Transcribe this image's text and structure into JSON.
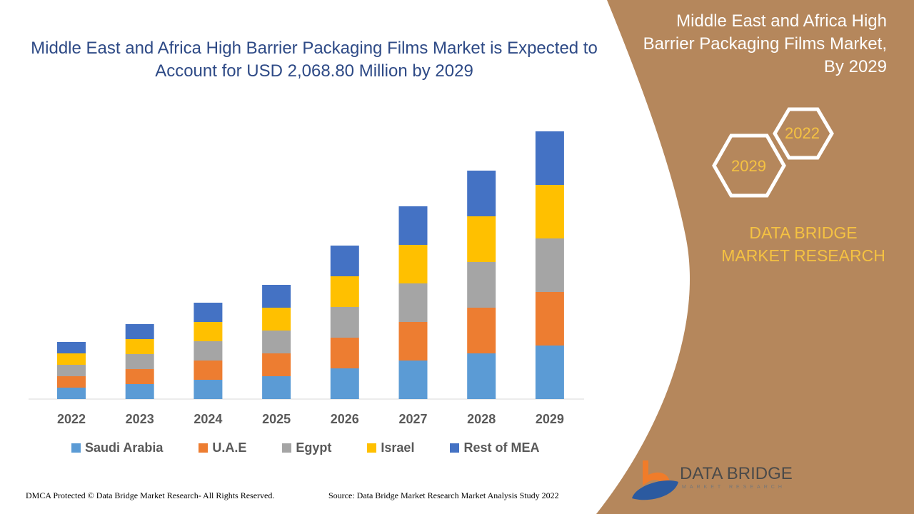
{
  "header": {
    "title": "Middle East and Africa High Barrier Packaging Films Market is Expected to Account for USD 2,068.80 Million by 2029"
  },
  "side_panel": {
    "title": "Middle East and Africa High Barrier Packaging Films Market, By 2029",
    "hex_years": [
      "2022",
      "2029"
    ],
    "brand": "DATA BRIDGE MARKET RESEARCH",
    "logo_text": "DATA BRIDGE",
    "logo_subtext": "MARKET RESEARCH",
    "panel_color": "#b5875c"
  },
  "footer": {
    "left": "DMCA Protected © Data Bridge Market Research- All Rights Reserved.",
    "right": "Source: Data Bridge Market Research Market Analysis Study 2022"
  },
  "chart_data": {
    "type": "bar",
    "stacked": true,
    "title": "",
    "xlabel": "",
    "ylabel": "",
    "y_axis_visible": false,
    "grid": false,
    "legend_position": "bottom",
    "categories": [
      "2022",
      "2023",
      "2024",
      "2025",
      "2026",
      "2027",
      "2028",
      "2029"
    ],
    "series": [
      {
        "name": "Saudi Arabia",
        "color": "#5b9bd5",
        "values": [
          16,
          21,
          27,
          32,
          43,
          54,
          64,
          75
        ]
      },
      {
        "name": "U.A.E",
        "color": "#ed7d31",
        "values": [
          16,
          21,
          27,
          32,
          43,
          54,
          64,
          75
        ]
      },
      {
        "name": "Egypt",
        "color": "#a5a5a5",
        "values": [
          16,
          21,
          27,
          32,
          43,
          54,
          64,
          75
        ]
      },
      {
        "name": "Israel",
        "color": "#ffc000",
        "values": [
          16,
          21,
          27,
          32,
          43,
          54,
          64,
          75
        ]
      },
      {
        "name": "Rest of MEA",
        "color": "#4472c4",
        "values": [
          16,
          21,
          27,
          32,
          43,
          54,
          64,
          75
        ]
      }
    ]
  }
}
